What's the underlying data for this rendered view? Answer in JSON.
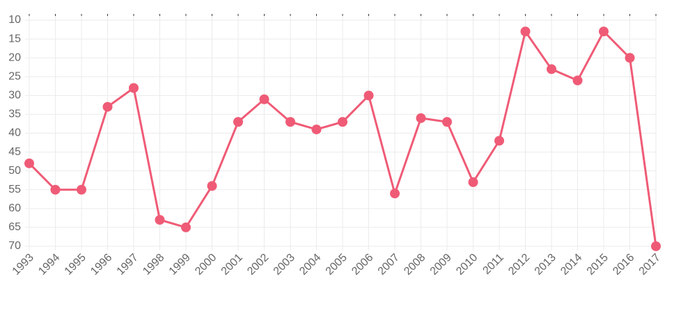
{
  "chart_data": {
    "type": "line",
    "categories": [
      "1993",
      "1994",
      "1995",
      "1996",
      "1997",
      "1998",
      "1999",
      "2000",
      "2001",
      "2002",
      "2003",
      "2004",
      "2005",
      "2006",
      "2007",
      "2008",
      "2009",
      "2010",
      "2011",
      "2012",
      "2013",
      "2014",
      "2015",
      "2016",
      "2017"
    ],
    "series": [
      {
        "color": "#ef5b76",
        "values": [
          48,
          55,
          55,
          33,
          28,
          63,
          65,
          54,
          37,
          31,
          37,
          39,
          37,
          30,
          56,
          36,
          37,
          53,
          42,
          13,
          23,
          26,
          13,
          20,
          70
        ]
      }
    ],
    "ylim": [
      10,
      70
    ],
    "yticks": [
      10,
      15,
      20,
      25,
      30,
      35,
      40,
      45,
      50,
      55,
      60,
      65,
      70
    ],
    "y_reversed": true,
    "grid": true
  }
}
